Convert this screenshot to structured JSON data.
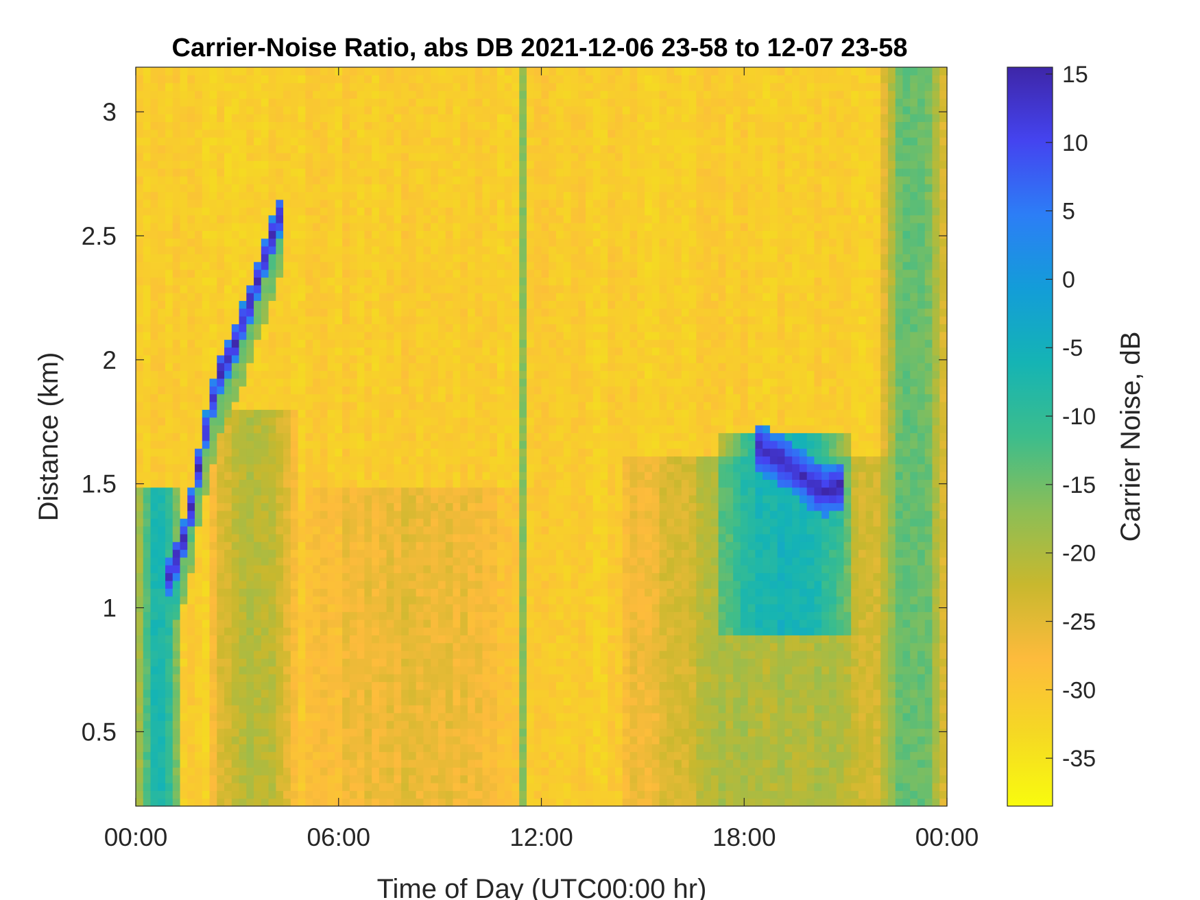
{
  "chart_data": {
    "type": "heatmap",
    "title": "Carrier-Noise Ratio, abs DB 2021-12-06 23-58 to 12-07 23-58",
    "xlabel": "Time of Day (UTC00:00 hr)",
    "ylabel": "Distance (km)",
    "colorbar_label": "Carrier Noise, dB",
    "x_unit": "hours",
    "xlim": [
      0,
      24
    ],
    "ylim": [
      0.2,
      3.18
    ],
    "clim": [
      -38.5,
      15.5
    ],
    "x_ticks": [
      {
        "value": 0,
        "label": "00:00"
      },
      {
        "value": 6,
        "label": "06:00"
      },
      {
        "value": 12,
        "label": "12:00"
      },
      {
        "value": 18,
        "label": "18:00"
      },
      {
        "value": 24,
        "label": "00:00"
      }
    ],
    "y_ticks": [
      {
        "value": 0.5,
        "label": "0.5"
      },
      {
        "value": 1,
        "label": "1"
      },
      {
        "value": 1.5,
        "label": "1.5"
      },
      {
        "value": 2,
        "label": "2"
      },
      {
        "value": 2.5,
        "label": "2.5"
      },
      {
        "value": 3,
        "label": "3"
      }
    ],
    "colorbar_ticks": [
      {
        "value": 15,
        "label": "15"
      },
      {
        "value": 10,
        "label": "10"
      },
      {
        "value": 5,
        "label": "5"
      },
      {
        "value": 0,
        "label": "0"
      },
      {
        "value": -5,
        "label": "-5"
      },
      {
        "value": -10,
        "label": "-10"
      },
      {
        "value": -15,
        "label": "-15"
      },
      {
        "value": -20,
        "label": "-20"
      },
      {
        "value": -25,
        "label": "-25"
      },
      {
        "value": -30,
        "label": "-30"
      },
      {
        "value": -35,
        "label": "-35"
      }
    ],
    "colormap": "parula",
    "colormap_stops": [
      "#3e26a8",
      "#4444f0",
      "#2c7ef6",
      "#139dd8",
      "#15b4b4",
      "#3cbd8c",
      "#8cbe56",
      "#c8b82e",
      "#fdbb3c",
      "#f5d824",
      "#f9fb0e"
    ],
    "background_level_dB": -31,
    "features": [
      {
        "name": "rising cloud layer",
        "kind": "ridge",
        "points": [
          [
            0.9,
            1.1
          ],
          [
            1.5,
            1.3
          ],
          [
            1.9,
            1.6
          ],
          [
            2.3,
            1.85
          ],
          [
            2.5,
            1.95
          ],
          [
            2.9,
            2.05
          ],
          [
            3.3,
            2.2
          ],
          [
            3.8,
            2.4
          ],
          [
            4.3,
            2.6
          ]
        ],
        "thickness_km": 0.08,
        "peak_dB": 15
      },
      {
        "name": "early near-range band",
        "kind": "band",
        "x": [
          0,
          1.4
        ],
        "y": [
          0.2,
          1.5
        ],
        "level_dB": -8
      },
      {
        "name": "night boundary layer",
        "kind": "band",
        "x": [
          2.2,
          4.7
        ],
        "y": [
          0.2,
          1.8
        ],
        "level_dB": -20
      },
      {
        "name": "morning layer",
        "kind": "band",
        "x": [
          4.9,
          11.5
        ],
        "y": [
          0.2,
          1.5
        ],
        "level_dB": -26
      },
      {
        "name": "midday streak",
        "kind": "streak",
        "x": [
          11.35,
          11.55
        ],
        "y": [
          0.2,
          3.18
        ],
        "level_dB": -17
      },
      {
        "name": "afternoon layer",
        "kind": "band",
        "x": [
          14.5,
          23.5
        ],
        "y": [
          0.2,
          1.6
        ],
        "level_dB": -20
      },
      {
        "name": "evening cloud base",
        "kind": "ridge",
        "points": [
          [
            18.4,
            1.65
          ],
          [
            19.0,
            1.6
          ],
          [
            19.6,
            1.55
          ],
          [
            20.0,
            1.5
          ],
          [
            20.5,
            1.47
          ],
          [
            20.9,
            1.5
          ]
        ],
        "thickness_km": 0.1,
        "peak_dB": 15
      },
      {
        "name": "evening cloud layer",
        "kind": "band",
        "x": [
          17.2,
          21.2
        ],
        "y": [
          0.9,
          1.7
        ],
        "level_dB": -6
      },
      {
        "name": "late streaks",
        "kind": "band",
        "x": [
          22.1,
          23.9
        ],
        "y": [
          0.2,
          3.18
        ],
        "level_dB": -14
      }
    ]
  }
}
